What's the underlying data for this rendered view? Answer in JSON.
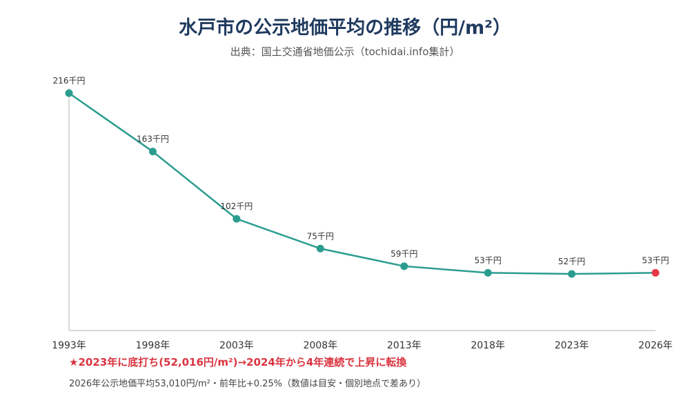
{
  "header": {
    "title": "水戸市の公示地価平均の推移（円/m²）",
    "source": "出典：国土交通省地価公示（tochidai.info集計）"
  },
  "chart_data": {
    "type": "line",
    "x": [
      "1993年",
      "1998年",
      "2003年",
      "2008年",
      "2013年",
      "2018年",
      "2023年",
      "2026年"
    ],
    "series": [
      {
        "values": [
          216000,
          163000,
          102000,
          75000,
          59000,
          53000,
          52000,
          53000
        ],
        "labels": [
          "216千円",
          "163千円",
          "102千円",
          "75千円",
          "59千円",
          "53千円",
          "52千円",
          "53千円"
        ]
      }
    ],
    "highlight_last_point": true,
    "colors": {
      "line": "#2a9d8f",
      "highlight": "#e63946",
      "axis": "#cccccc"
    },
    "grid": false
  },
  "notes": {
    "highlight": "★2023年に底打ち(52,016円/m²)→2024年から4年連続で上昇に転換",
    "summary": "2026年公示地価平均53,010円/m²・前年比+0.25%（数値は目安・個別地点で差あり）"
  }
}
